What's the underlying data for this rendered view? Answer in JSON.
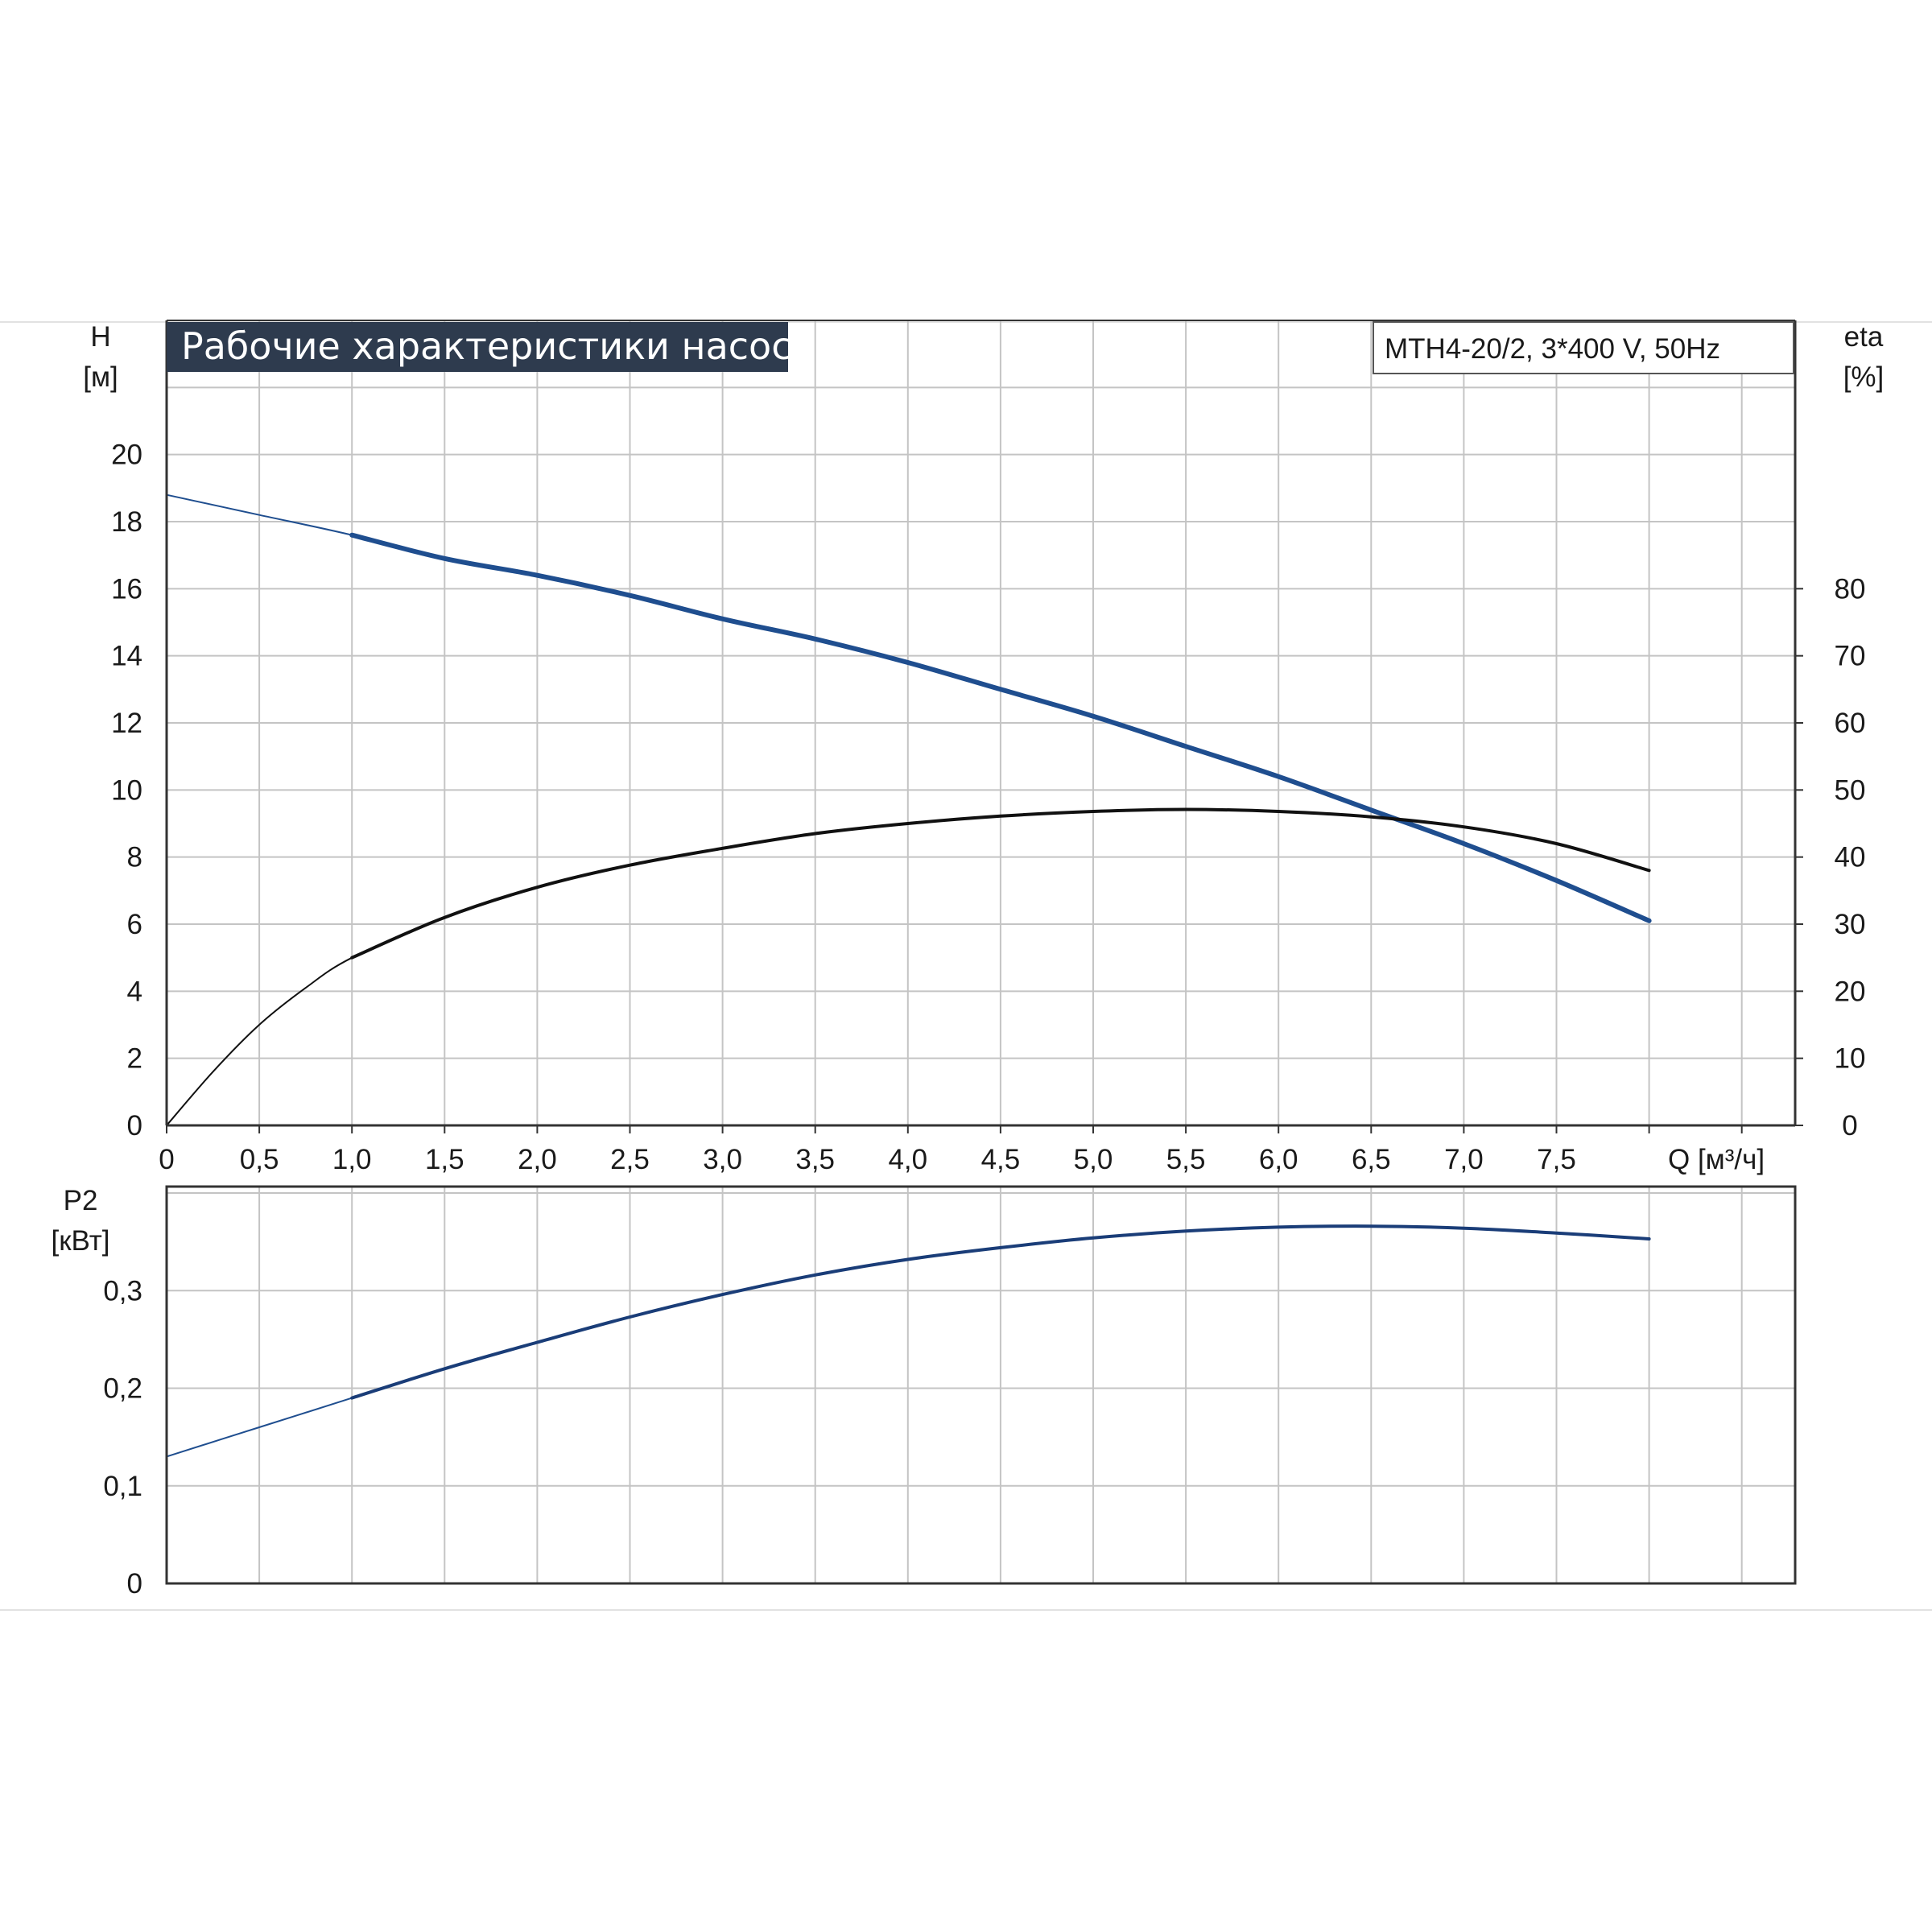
{
  "title": "Рабочие характеристики насоса",
  "model_label": "MTH4-20/2, 3*400 V, 50Hz",
  "colors": {
    "title_bg": "#2e3b4e",
    "title_fg": "#ffffff",
    "grid": "#c4c4c4",
    "frame": "#333333",
    "curve_blue": "#1f4e8f",
    "curve_black": "#111111"
  },
  "chart_data": [
    {
      "type": "line",
      "title": "Рабочие характеристики насоса",
      "subtitle": "MTH4-20/2, 3*400 V, 50Hz",
      "xlabel": "Q [м³/ч]",
      "ylabel": "H\n[м]",
      "y2label": "eta\n[%]",
      "xlim": [
        0,
        8.8
      ],
      "ylim": [
        0,
        24
      ],
      "y2lim": [
        0,
        120
      ],
      "grid": true,
      "x_ticks": [
        "0",
        "0,5",
        "1,0",
        "1,5",
        "2,0",
        "2,5",
        "3,0",
        "3,5",
        "4,0",
        "4,5",
        "5,0",
        "5,5",
        "6,0",
        "6,5",
        "7,0",
        "7,5"
      ],
      "y_ticks": [
        "0",
        "2",
        "4",
        "6",
        "8",
        "10",
        "12",
        "14",
        "16",
        "18",
        "20"
      ],
      "y2_ticks": [
        "0",
        "10",
        "20",
        "30",
        "40",
        "50",
        "60",
        "70",
        "80"
      ],
      "series": [
        {
          "name": "H",
          "axis": "left",
          "x": [
            0,
            0.5,
            1.0,
            1.5,
            2.0,
            2.5,
            3.0,
            3.5,
            4.0,
            4.5,
            5.0,
            5.5,
            6.0,
            6.5,
            7.0,
            7.5,
            8.0
          ],
          "values": [
            18.8,
            18.2,
            17.6,
            16.9,
            16.4,
            15.8,
            15.1,
            14.5,
            13.8,
            13.0,
            12.2,
            11.3,
            10.4,
            9.4,
            8.4,
            7.3,
            6.1
          ]
        },
        {
          "name": "eta",
          "axis": "right",
          "x": [
            0,
            0.25,
            0.5,
            0.75,
            1.0,
            1.5,
            2.0,
            2.5,
            3.0,
            3.5,
            4.0,
            4.5,
            5.0,
            5.5,
            6.0,
            6.5,
            7.0,
            7.5,
            8.0
          ],
          "values": [
            0,
            8,
            15,
            20.5,
            25,
            31,
            35.5,
            38.8,
            41.3,
            43.5,
            45,
            46.1,
            46.8,
            47.1,
            46.8,
            46,
            44.5,
            42,
            38
          ]
        }
      ]
    },
    {
      "type": "line",
      "xlabel": "Q [м³/ч]",
      "ylabel": "P2\n[кВт]",
      "xlim": [
        0,
        8.8
      ],
      "ylim": [
        0,
        0.4
      ],
      "grid": true,
      "y_ticks": [
        "0",
        "0,1",
        "0,2",
        "0,3"
      ],
      "series": [
        {
          "name": "P2",
          "x": [
            0,
            0.5,
            1.0,
            1.5,
            2.0,
            2.5,
            3.0,
            3.5,
            4.0,
            4.5,
            5.0,
            5.5,
            6.0,
            6.5,
            7.0,
            7.5,
            8.0
          ],
          "values": [
            0.13,
            0.16,
            0.19,
            0.22,
            0.247,
            0.273,
            0.296,
            0.316,
            0.332,
            0.344,
            0.354,
            0.361,
            0.365,
            0.366,
            0.364,
            0.359,
            0.353
          ]
        }
      ]
    }
  ]
}
